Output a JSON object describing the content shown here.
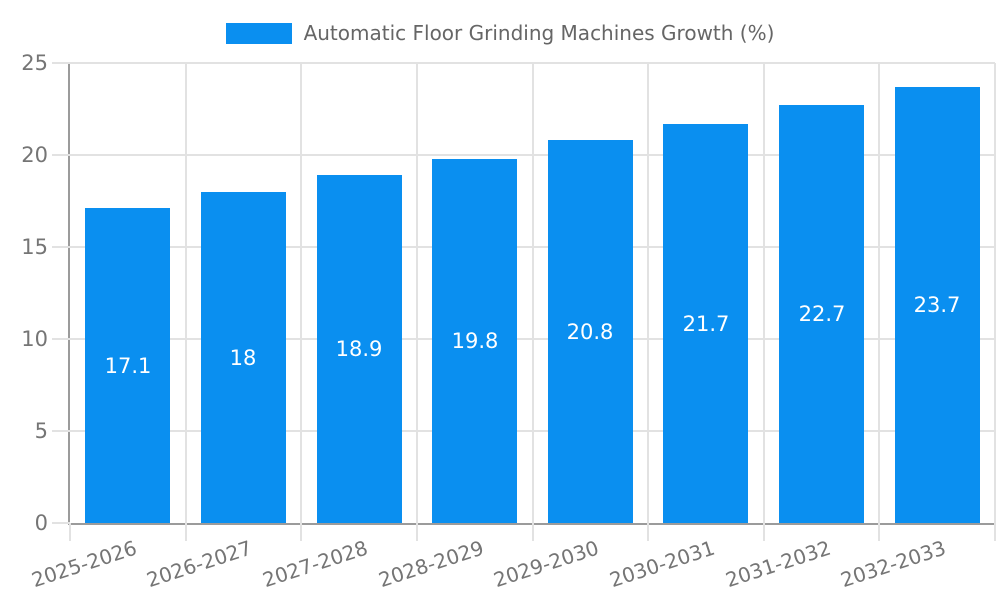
{
  "legend": {
    "label": "Automatic Floor Grinding Machines Growth (%)"
  },
  "chart_data": {
    "type": "bar",
    "title": "Automatic Floor Grinding Machines Growth (%)",
    "categories": [
      "2025-2026",
      "2026-2027",
      "2027-2028",
      "2028-2029",
      "2029-2030",
      "2030-2031",
      "2031-2032",
      "2032-2033"
    ],
    "values": [
      17.1,
      18,
      18.9,
      19.8,
      20.8,
      21.7,
      22.7,
      23.7
    ],
    "xlabel": "",
    "ylabel": "",
    "ylim": [
      0,
      25
    ],
    "yticks": [
      0,
      5,
      10,
      15,
      20,
      25
    ],
    "grid": true,
    "legend_position": "top-center",
    "value_labels": "inside-middle",
    "x_tick_rotation_deg": -18,
    "colors": {
      "bar": "#0a8ff0",
      "grid": "#e2e2e2",
      "axis": "#9b9b9b",
      "tick_label": "#757575",
      "legend_text": "#666666",
      "value_label": "#ffffff",
      "background": "#ffffff"
    }
  }
}
